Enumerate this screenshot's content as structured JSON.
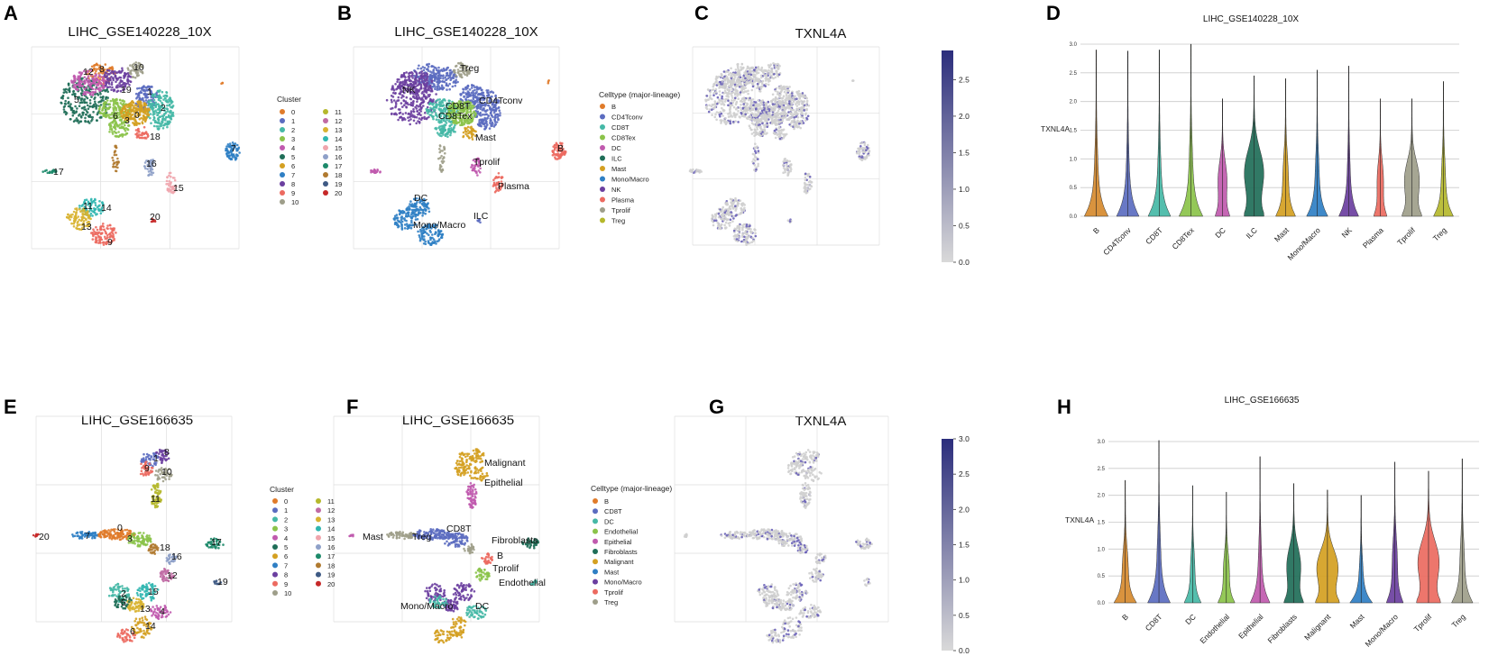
{
  "panels": {
    "A": {
      "label": "A",
      "title": "LIHC_GSE140228_10X",
      "legend_title": "Cluster"
    },
    "B": {
      "label": "B",
      "title": "LIHC_GSE140228_10X",
      "legend_title": "Celltype (major-lineage)"
    },
    "C": {
      "label": "C",
      "title": "TXNL4A"
    },
    "D": {
      "label": "D",
      "title": "LIHC_GSE140228_10X",
      "ylabel": "TXNL4A"
    },
    "E": {
      "label": "E",
      "title": "LIHC_GSE166635",
      "legend_title": "Cluster"
    },
    "F": {
      "label": "F",
      "title": "LIHC_GSE166635",
      "legend_title": "Celltype (major-lineage)"
    },
    "G": {
      "label": "G",
      "title": "TXNL4A"
    },
    "H": {
      "label": "H",
      "title": "LIHC_GSE166635",
      "ylabel": "TXNL4A"
    }
  },
  "colors": {
    "clusters": [
      "#e07b2a",
      "#5b6cc0",
      "#45b8a6",
      "#8bc34a",
      "#c05aae",
      "#1f6e58",
      "#d4a021",
      "#2f7fc4",
      "#6b3fa0",
      "#ec6a60",
      "#9e9e8a",
      "#b5b82c",
      "#c06aa4",
      "#d8b230",
      "#30b6b0",
      "#f0a5ad",
      "#8ea0c8",
      "#1d8a6a",
      "#b07a30",
      "#3e5a84",
      "#c62828"
    ],
    "celltypes_1": {
      "B": "#e07b2a",
      "CD4Tconv": "#5b6cc0",
      "CD8T": "#45b8a6",
      "CD8Tex": "#8bc34a",
      "DC": "#c05aae",
      "ILC": "#1f6e58",
      "Mast": "#d4a021",
      "Mono/Macro": "#2f7fc4",
      "NK": "#6b3fa0",
      "Plasma": "#ec6a60",
      "Tprolif": "#9e9e8a",
      "Treg": "#b5b82c"
    },
    "celltypes_2": {
      "B": "#e07b2a",
      "CD8T": "#5b6cc0",
      "DC": "#45b8a6",
      "Endothelial": "#8bc34a",
      "Epithelial": "#c05aae",
      "Fibroblasts": "#1f6e58",
      "Malignant": "#d4a021",
      "Mast": "#2f7fc4",
      "Mono/Macro": "#6b3fa0",
      "Tprolif": "#ec6a60",
      "Treg": "#9e9e8a"
    },
    "umap_grey": "#cfcfcf",
    "expr_dot": "#6a62b8",
    "cbar_low": "#d9d9d9",
    "cbar_high": "#2b2d7c"
  },
  "legends": {
    "clusters_a": [
      "0",
      "1",
      "2",
      "3",
      "4",
      "5",
      "6",
      "7",
      "8",
      "9",
      "10",
      "11",
      "12",
      "13",
      "14",
      "15",
      "16",
      "17",
      "18",
      "19",
      "20"
    ],
    "celltypes_b": [
      "B",
      "CD4Tconv",
      "CD8T",
      "CD8Tex",
      "DC",
      "ILC",
      "Mast",
      "Mono/Macro",
      "NK",
      "Plasma",
      "Tprolif",
      "Treg"
    ],
    "clusters_e": [
      "0",
      "1",
      "2",
      "3",
      "4",
      "5",
      "6",
      "7",
      "8",
      "9",
      "10",
      "11",
      "12",
      "13",
      "14",
      "15",
      "16",
      "17",
      "18",
      "19",
      "20"
    ],
    "celltypes_f": [
      "B",
      "CD8T",
      "DC",
      "Endothelial",
      "Epithelial",
      "Fibroblasts",
      "Malignant",
      "Mast",
      "Mono/Macro",
      "Tprolif",
      "Treg"
    ]
  },
  "annotations": {
    "A": [
      "12",
      "8",
      "10",
      "5",
      "19",
      "1",
      "2",
      "6",
      "3",
      "0",
      "18",
      "7",
      "17",
      "16",
      "15",
      "11",
      "14",
      "13",
      "9",
      "20"
    ],
    "B": [
      "Treg",
      "NK",
      "CD4Tconv",
      "CD8T",
      "CD8Tex",
      "Mast",
      "B",
      "Tprolif",
      "Plasma",
      "DC",
      "ILC",
      "Mono/Macro"
    ],
    "E": [
      "8",
      "1",
      "9",
      "10",
      "11",
      "20",
      "7",
      "0",
      "3",
      "18",
      "16",
      "17",
      "12",
      "19",
      "2",
      "15",
      "13",
      "4",
      "5",
      "14",
      "6"
    ],
    "F": [
      "Malignant",
      "Epithelial",
      "Mast",
      "Treg",
      "CD8T",
      "Fibroblasts",
      "B",
      "Tprolif",
      "Endothelial",
      "Mono/Macro",
      "DC"
    ]
  },
  "chart_data": [
    {
      "id": "C",
      "type": "scatter",
      "title": "TXNL4A",
      "colorbar": {
        "min": 0.0,
        "max": 2.9,
        "ticks": [
          "0.0",
          "0.5",
          "1.0",
          "1.5",
          "2.0",
          "2.5"
        ]
      }
    },
    {
      "id": "D",
      "type": "violin",
      "title": "LIHC_GSE140228_10X",
      "ylabel": "TXNL4A",
      "ylim": [
        0,
        3.0
      ],
      "yticks": [
        "0.0",
        "0.5",
        "1.0",
        "1.5",
        "2.0",
        "2.5",
        "3.0"
      ],
      "categories": [
        "B",
        "CD4Tconv",
        "CD8T",
        "CD8Tex",
        "DC",
        "ILC",
        "Mast",
        "Mono/Macro",
        "NK",
        "Plasma",
        "Tprolif",
        "Treg"
      ],
      "max": [
        2.9,
        2.88,
        2.9,
        3.0,
        2.05,
        2.45,
        2.4,
        2.55,
        2.62,
        2.05,
        2.05,
        2.35
      ],
      "bulge": [
        0.08,
        0.06,
        0.07,
        0.09,
        0.6,
        1.0,
        0.22,
        0.12,
        0.08,
        0.45,
        0.75,
        0.14
      ],
      "width": [
        0.9,
        0.85,
        0.85,
        0.9,
        0.55,
        0.75,
        0.75,
        0.8,
        0.75,
        0.5,
        0.75,
        0.75
      ],
      "colors": [
        "#d68a2e",
        "#5b6cc0",
        "#45b8a6",
        "#8bc34a",
        "#c05aae",
        "#1f6e58",
        "#d4a021",
        "#2f7fc4",
        "#6b3fa0",
        "#ec6a60",
        "#9e9e8a",
        "#b5b82c"
      ]
    },
    {
      "id": "G",
      "type": "scatter",
      "title": "TXNL4A",
      "colorbar": {
        "min": 0.0,
        "max": 3.0,
        "ticks": [
          "0.0",
          "0.5",
          "1.0",
          "1.5",
          "2.0",
          "2.5",
          "3.0"
        ]
      }
    },
    {
      "id": "H",
      "type": "violin",
      "title": "LIHC_GSE166635",
      "ylabel": "TXNL4A",
      "ylim": [
        0,
        3.0
      ],
      "yticks": [
        "0.0",
        "0.5",
        "1.0",
        "1.5",
        "2.0",
        "2.5",
        "3.0"
      ],
      "categories": [
        "B",
        "CD8T",
        "DC",
        "Endothelial",
        "Epithelial",
        "Fibroblasts",
        "Malignant",
        "Mast",
        "Mono/Macro",
        "Tprolif",
        "Treg"
      ],
      "max": [
        2.28,
        3.02,
        2.18,
        2.06,
        2.72,
        2.22,
        2.1,
        2.0,
        2.62,
        2.45,
        2.68
      ],
      "bulge": [
        0.2,
        0.1,
        0.2,
        0.3,
        0.1,
        0.7,
        0.9,
        0.1,
        0.25,
        0.9,
        0.15
      ],
      "width": [
        0.8,
        0.8,
        0.6,
        0.6,
        0.7,
        0.7,
        0.85,
        0.8,
        0.6,
        0.85,
        0.75
      ],
      "colors": [
        "#d68a2e",
        "#5b6cc0",
        "#45b8a6",
        "#8bc34a",
        "#c05aae",
        "#1f6e58",
        "#d4a021",
        "#2f7fc4",
        "#6b3fa0",
        "#ec6a60",
        "#9e9e8a"
      ]
    }
  ]
}
